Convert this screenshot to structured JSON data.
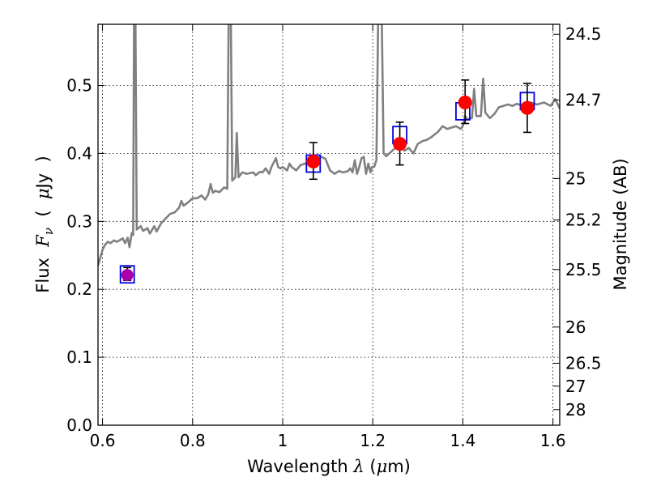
{
  "chart_data": {
    "type": "scatter",
    "xlabel_parts": [
      "Wavelength ",
      "λ",
      " (",
      "μ",
      "m)"
    ],
    "ylabel_parts": [
      "Flux  ",
      "F",
      "ν",
      "  (  ",
      "μ",
      "Jy  )"
    ],
    "ylabel_right": "Magnitude (AB)",
    "xlim": [
      0.59,
      1.615
    ],
    "ylim": [
      0.0,
      0.59
    ],
    "grid": true,
    "x_ticks": [
      {
        "v": 0.6,
        "label": "0.6"
      },
      {
        "v": 0.8,
        "label": "0.8"
      },
      {
        "v": 1.0,
        "label": "1"
      },
      {
        "v": 1.2,
        "label": "1.2"
      },
      {
        "v": 1.4,
        "label": "1.4"
      },
      {
        "v": 1.6,
        "label": "1.6"
      }
    ],
    "y_ticks": [
      {
        "v": 0.0,
        "label": "0.0"
      },
      {
        "v": 0.1,
        "label": "0.1"
      },
      {
        "v": 0.2,
        "label": "0.2"
      },
      {
        "v": 0.3,
        "label": "0.3"
      },
      {
        "v": 0.4,
        "label": "0.4"
      },
      {
        "v": 0.5,
        "label": "0.5"
      }
    ],
    "right_ticks": [
      {
        "label": "24.5",
        "flux": 0.5754
      },
      {
        "label": "24.7",
        "flux": 0.4786
      },
      {
        "label": "25",
        "flux": 0.3631
      },
      {
        "label": "25.2",
        "flux": 0.302
      },
      {
        "label": "25.5",
        "flux": 0.2291
      },
      {
        "label": "26",
        "flux": 0.1445
      },
      {
        "label": "26.5",
        "flux": 0.0912
      },
      {
        "label": "27",
        "flux": 0.0575
      },
      {
        "label": "28",
        "flux": 0.0229
      }
    ],
    "spectrum": {
      "color": "#808080",
      "points": [
        [
          0.59,
          0.235
        ],
        [
          0.6,
          0.258
        ],
        [
          0.605,
          0.265
        ],
        [
          0.612,
          0.27
        ],
        [
          0.618,
          0.268
        ],
        [
          0.625,
          0.272
        ],
        [
          0.632,
          0.27
        ],
        [
          0.64,
          0.273
        ],
        [
          0.645,
          0.275
        ],
        [
          0.65,
          0.268
        ],
        [
          0.656,
          0.276
        ],
        [
          0.66,
          0.262
        ],
        [
          0.665,
          0.283
        ],
        [
          0.668,
          0.28
        ],
        [
          0.67,
          0.6
        ],
        [
          0.673,
          0.6
        ],
        [
          0.676,
          0.288
        ],
        [
          0.685,
          0.293
        ],
        [
          0.69,
          0.286
        ],
        [
          0.7,
          0.29
        ],
        [
          0.705,
          0.282
        ],
        [
          0.715,
          0.293
        ],
        [
          0.72,
          0.285
        ],
        [
          0.73,
          0.297
        ],
        [
          0.74,
          0.304
        ],
        [
          0.75,
          0.311
        ],
        [
          0.76,
          0.313
        ],
        [
          0.77,
          0.32
        ],
        [
          0.775,
          0.33
        ],
        [
          0.78,
          0.323
        ],
        [
          0.79,
          0.328
        ],
        [
          0.8,
          0.334
        ],
        [
          0.81,
          0.334
        ],
        [
          0.82,
          0.338
        ],
        [
          0.828,
          0.332
        ],
        [
          0.835,
          0.34
        ],
        [
          0.84,
          0.355
        ],
        [
          0.845,
          0.342
        ],
        [
          0.85,
          0.345
        ],
        [
          0.86,
          0.343
        ],
        [
          0.87,
          0.35
        ],
        [
          0.877,
          0.348
        ],
        [
          0.88,
          0.6
        ],
        [
          0.885,
          0.6
        ],
        [
          0.888,
          0.36
        ],
        [
          0.895,
          0.365
        ],
        [
          0.898,
          0.43
        ],
        [
          0.902,
          0.365
        ],
        [
          0.91,
          0.372
        ],
        [
          0.92,
          0.37
        ],
        [
          0.935,
          0.372
        ],
        [
          0.94,
          0.368
        ],
        [
          0.95,
          0.373
        ],
        [
          0.955,
          0.372
        ],
        [
          0.962,
          0.378
        ],
        [
          0.97,
          0.37
        ],
        [
          0.975,
          0.38
        ],
        [
          0.985,
          0.393
        ],
        [
          0.99,
          0.38
        ],
        [
          0.995,
          0.378
        ],
        [
          1.0,
          0.38
        ],
        [
          1.01,
          0.375
        ],
        [
          1.015,
          0.385
        ],
        [
          1.02,
          0.38
        ],
        [
          1.03,
          0.375
        ],
        [
          1.04,
          0.383
        ],
        [
          1.05,
          0.385
        ],
        [
          1.06,
          0.39
        ],
        [
          1.07,
          0.393
        ],
        [
          1.085,
          0.395
        ],
        [
          1.095,
          0.392
        ],
        [
          1.105,
          0.375
        ],
        [
          1.115,
          0.37
        ],
        [
          1.125,
          0.374
        ],
        [
          1.135,
          0.372
        ],
        [
          1.145,
          0.374
        ],
        [
          1.15,
          0.378
        ],
        [
          1.155,
          0.372
        ],
        [
          1.16,
          0.39
        ],
        [
          1.165,
          0.37
        ],
        [
          1.17,
          0.38
        ],
        [
          1.175,
          0.393
        ],
        [
          1.18,
          0.395
        ],
        [
          1.185,
          0.37
        ],
        [
          1.19,
          0.385
        ],
        [
          1.195,
          0.372
        ],
        [
          1.198,
          0.38
        ],
        [
          1.203,
          0.38
        ],
        [
          1.208,
          0.39
        ],
        [
          1.212,
          0.6
        ],
        [
          1.22,
          0.6
        ],
        [
          1.224,
          0.4
        ],
        [
          1.23,
          0.396
        ],
        [
          1.24,
          0.402
        ],
        [
          1.25,
          0.408
        ],
        [
          1.26,
          0.415
        ],
        [
          1.27,
          0.404
        ],
        [
          1.28,
          0.408
        ],
        [
          1.29,
          0.4
        ],
        [
          1.3,
          0.414
        ],
        [
          1.31,
          0.418
        ],
        [
          1.32,
          0.42
        ],
        [
          1.33,
          0.424
        ],
        [
          1.345,
          0.432
        ],
        [
          1.355,
          0.44
        ],
        [
          1.365,
          0.436
        ],
        [
          1.375,
          0.438
        ],
        [
          1.385,
          0.44
        ],
        [
          1.395,
          0.436
        ],
        [
          1.4,
          0.44
        ],
        [
          1.405,
          0.455
        ],
        [
          1.41,
          0.45
        ],
        [
          1.42,
          0.452
        ],
        [
          1.425,
          0.495
        ],
        [
          1.43,
          0.455
        ],
        [
          1.44,
          0.455
        ],
        [
          1.445,
          0.51
        ],
        [
          1.45,
          0.46
        ],
        [
          1.46,
          0.452
        ],
        [
          1.47,
          0.458
        ],
        [
          1.48,
          0.468
        ],
        [
          1.49,
          0.47
        ],
        [
          1.5,
          0.472
        ],
        [
          1.51,
          0.47
        ],
        [
          1.52,
          0.473
        ],
        [
          1.535,
          0.47
        ],
        [
          1.55,
          0.475
        ],
        [
          1.565,
          0.472
        ],
        [
          1.58,
          0.475
        ],
        [
          1.595,
          0.47
        ],
        [
          1.605,
          0.48
        ],
        [
          1.615,
          0.466
        ]
      ]
    },
    "model_boxes": {
      "color": "#0000dd",
      "points": [
        {
          "x": 0.655,
          "y": 0.222
        },
        {
          "x": 1.068,
          "y": 0.385
        },
        {
          "x": 1.26,
          "y": 0.427
        },
        {
          "x": 1.4,
          "y": 0.462
        },
        {
          "x": 1.543,
          "y": 0.477
        }
      ]
    },
    "observed": {
      "color": "#ff0000",
      "points": [
        {
          "x": 1.068,
          "y": 0.388,
          "yerr_low": 0.026,
          "yerr_high": 0.028
        },
        {
          "x": 1.26,
          "y": 0.414,
          "yerr_low": 0.031,
          "yerr_high": 0.032
        },
        {
          "x": 1.405,
          "y": 0.475,
          "yerr_low": 0.031,
          "yerr_high": 0.033
        },
        {
          "x": 1.543,
          "y": 0.467,
          "yerr_low": 0.036,
          "yerr_high": 0.036
        }
      ]
    },
    "highlight": {
      "color": "#aa00aa",
      "points": [
        {
          "x": 0.655,
          "y": 0.221,
          "yerr_low": 0.008,
          "yerr_high": 0.011
        }
      ]
    }
  }
}
